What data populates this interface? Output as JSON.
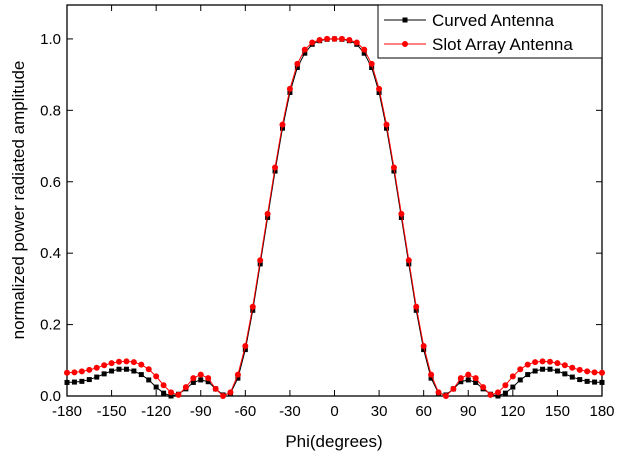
{
  "chart_data": {
    "type": "line",
    "xlabel": "Phi(degrees)",
    "ylabel": "normalized power radiated amplitude",
    "x": [
      -180,
      -175,
      -170,
      -165,
      -160,
      -155,
      -150,
      -145,
      -140,
      -135,
      -130,
      -125,
      -120,
      -115,
      -110,
      -105,
      -100,
      -95,
      -90,
      -85,
      -80,
      -75,
      -70,
      -65,
      -60,
      -55,
      -50,
      -45,
      -40,
      -35,
      -30,
      -25,
      -20,
      -15,
      -10,
      -5,
      0,
      5,
      10,
      15,
      20,
      25,
      30,
      35,
      40,
      45,
      50,
      55,
      60,
      65,
      70,
      75,
      80,
      85,
      90,
      95,
      100,
      105,
      110,
      115,
      120,
      125,
      130,
      135,
      140,
      145,
      150,
      155,
      160,
      165,
      170,
      175,
      180
    ],
    "series": [
      {
        "name": "Curved Antenna",
        "color": "#000000",
        "marker": "square",
        "values": [
          0.038,
          0.039,
          0.041,
          0.046,
          0.053,
          0.062,
          0.07,
          0.075,
          0.075,
          0.07,
          0.06,
          0.045,
          0.025,
          0.008,
          0.0,
          0.005,
          0.02,
          0.038,
          0.045,
          0.04,
          0.02,
          0.003,
          0.008,
          0.05,
          0.13,
          0.24,
          0.37,
          0.5,
          0.63,
          0.75,
          0.85,
          0.92,
          0.96,
          0.985,
          0.995,
          0.999,
          1.0,
          0.999,
          0.995,
          0.985,
          0.96,
          0.92,
          0.85,
          0.75,
          0.63,
          0.5,
          0.37,
          0.24,
          0.13,
          0.05,
          0.008,
          0.003,
          0.02,
          0.04,
          0.045,
          0.038,
          0.02,
          0.005,
          0.0,
          0.008,
          0.025,
          0.045,
          0.06,
          0.07,
          0.075,
          0.075,
          0.07,
          0.062,
          0.053,
          0.046,
          0.041,
          0.039,
          0.038
        ]
      },
      {
        "name": "Slot Array Antenna",
        "color": "#ff0000",
        "marker": "circle",
        "values": [
          0.065,
          0.066,
          0.069,
          0.073,
          0.079,
          0.086,
          0.092,
          0.096,
          0.097,
          0.095,
          0.088,
          0.075,
          0.055,
          0.03,
          0.01,
          0.003,
          0.025,
          0.05,
          0.06,
          0.05,
          0.02,
          0.0,
          0.01,
          0.06,
          0.14,
          0.25,
          0.38,
          0.51,
          0.64,
          0.76,
          0.86,
          0.93,
          0.97,
          0.99,
          0.997,
          1.0,
          1.0,
          1.0,
          0.997,
          0.99,
          0.97,
          0.93,
          0.86,
          0.76,
          0.64,
          0.51,
          0.38,
          0.25,
          0.14,
          0.06,
          0.01,
          0.0,
          0.02,
          0.05,
          0.06,
          0.05,
          0.025,
          0.003,
          0.01,
          0.03,
          0.055,
          0.075,
          0.088,
          0.095,
          0.097,
          0.096,
          0.092,
          0.086,
          0.079,
          0.073,
          0.069,
          0.066,
          0.065
        ]
      }
    ],
    "xlim": [
      -180,
      180
    ],
    "xticks": [
      -180,
      -150,
      -120,
      -90,
      -60,
      -30,
      0,
      30,
      60,
      90,
      120,
      150,
      180
    ],
    "ylim": [
      0,
      1.095
    ],
    "yticks": [
      {
        "value": 0,
        "label": "0.0"
      },
      0.2,
      0.4,
      0.6,
      0.8,
      {
        "value": 1,
        "label": "1.0"
      }
    ],
    "legend": "upper right"
  }
}
